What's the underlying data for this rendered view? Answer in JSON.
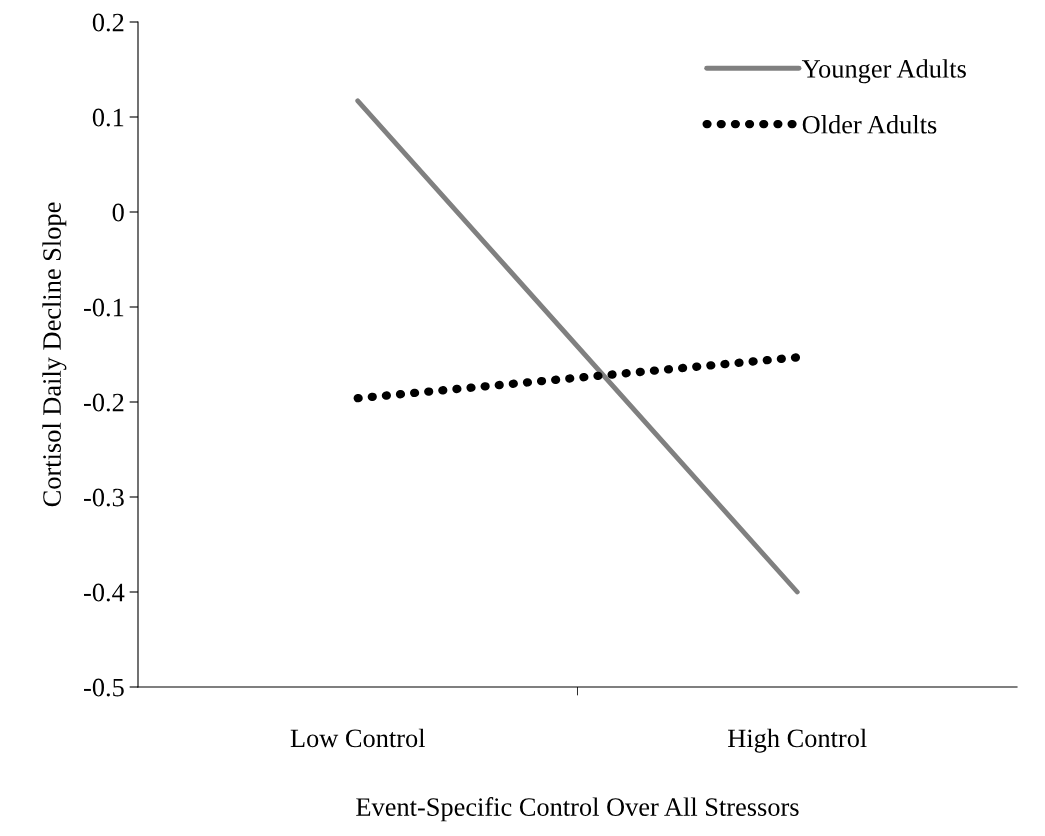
{
  "chart_data": {
    "type": "line",
    "xlabel": "Event-Specific Control Over All Stressors",
    "ylabel": "Cortisol Daily Decline Slope",
    "categories": [
      "Low Control",
      "High Control"
    ],
    "series": [
      {
        "name": "Younger Adults",
        "color": "#808080",
        "values": [
          0.117,
          -0.4
        ],
        "line_style": "solid"
      },
      {
        "name": "Older Adults",
        "color": "#000000",
        "values": [
          -0.196,
          -0.153
        ],
        "line_style": "dotted"
      }
    ],
    "ylim": [
      -0.5,
      0.2
    ],
    "yticks": [
      {
        "value": -0.5,
        "label": "-0.5"
      },
      {
        "value": -0.4,
        "label": "-0.4"
      },
      {
        "value": -0.3,
        "label": "-0.3"
      },
      {
        "value": -0.2,
        "label": "-0.2"
      },
      {
        "value": -0.1,
        "label": "-0.1"
      },
      0,
      0.1,
      0.2
    ],
    "grid": false,
    "legend": "top right",
    "marker": "none"
  }
}
